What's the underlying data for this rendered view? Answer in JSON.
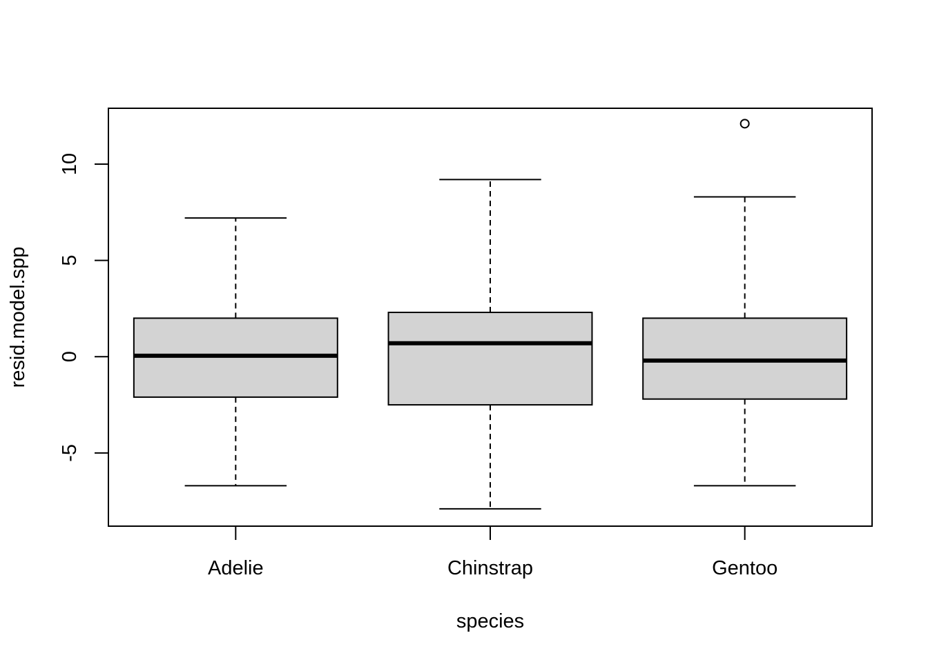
{
  "chart_data": {
    "type": "box",
    "title": "",
    "xlabel": "species",
    "ylabel": "resid.model.spp",
    "ylim": [
      -8.8,
      12.9
    ],
    "yticks": [
      -5,
      0,
      5,
      10
    ],
    "ytick_labels": [
      "-5",
      "0",
      "5",
      "10"
    ],
    "categories": [
      "Adelie",
      "Chinstrap",
      "Gentoo"
    ],
    "boxes": [
      {
        "category": "Adelie",
        "whisker_low": -6.7,
        "q1": -2.1,
        "median": 0.05,
        "q3": 2.0,
        "whisker_high": 7.2,
        "outliers": []
      },
      {
        "category": "Chinstrap",
        "whisker_low": -7.9,
        "q1": -2.5,
        "median": 0.7,
        "q3": 2.3,
        "whisker_high": 9.2,
        "outliers": []
      },
      {
        "category": "Gentoo",
        "whisker_low": -6.7,
        "q1": -2.2,
        "median": -0.2,
        "q3": 2.0,
        "whisker_high": 8.3,
        "outliers": [
          12.1
        ]
      }
    ],
    "box_fill": "#d3d3d3",
    "line_color": "#000000",
    "grid": false,
    "legend": "none"
  }
}
